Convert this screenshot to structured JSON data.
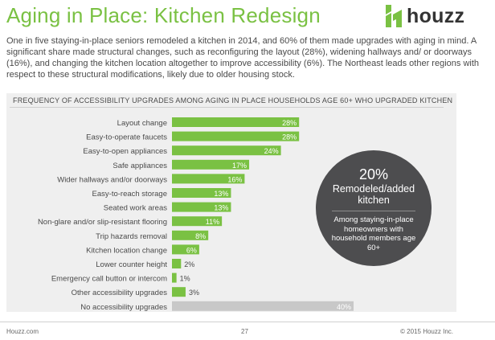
{
  "header": {
    "title": "Aging in Place: Kitchen Redesign",
    "logo_text": "houzz"
  },
  "intro": "One in five staying-in-place seniors remodeled a kitchen in 2014, and 60% of them made upgrades with aging in mind. A significant share made structural changes, such as reconfiguring the layout (28%), widening hallways and/ or doorways (16%), and changing the kitchen location altogether to improve accessibility (6%). The Northeast leads other regions with respect to these structural modifications, likely due to older housing stock.",
  "callout": {
    "big": "20%",
    "mid": "Remodeled/added kitchen",
    "small": "Among staying-in-place homeowners with household members age 60+"
  },
  "footer": {
    "left": "Houzz.com",
    "page": "27",
    "right": "© 2015 Houzz Inc."
  },
  "colors": {
    "brand_green": "#7ac143",
    "bar_green": "#7ac143",
    "bar_gray": "#c8c8c8",
    "callout_bg": "#4d4d4f"
  },
  "chart_data": {
    "type": "bar",
    "orientation": "horizontal",
    "title": "FREQUENCY OF ACCESSIBILITY UPGRADES AMONG AGING IN PLACE HOUSEHOLDS AGE 60+ WHO UPGRADED KITCHEN",
    "categories": [
      "Layout change",
      "Easy-to-operate faucets",
      "Easy-to-open appliances",
      "Safe appliances",
      "Wider hallways and/or doorways",
      "Easy-to-reach storage",
      "Seated work areas",
      "Non-glare and/or slip-resistant flooring",
      "Trip hazards removal",
      "Kitchen location change",
      "Lower counter height",
      "Emergency call button or intercom",
      "Other accessibility upgrades",
      "No accessibility upgrades"
    ],
    "values": [
      28,
      28,
      24,
      17,
      16,
      13,
      13,
      11,
      8,
      6,
      2,
      1,
      3,
      40
    ],
    "value_labels": [
      "28%",
      "28%",
      "24%",
      "17%",
      "16%",
      "13%",
      "13%",
      "11%",
      "8%",
      "6%",
      "2%",
      "1%",
      "3%",
      "40%"
    ],
    "highlight_colors": [
      "green",
      "green",
      "green",
      "green",
      "green",
      "green",
      "green",
      "green",
      "green",
      "green",
      "green",
      "green",
      "green",
      "gray"
    ],
    "xlim": [
      0,
      40
    ],
    "grid": false,
    "legend": "none"
  }
}
